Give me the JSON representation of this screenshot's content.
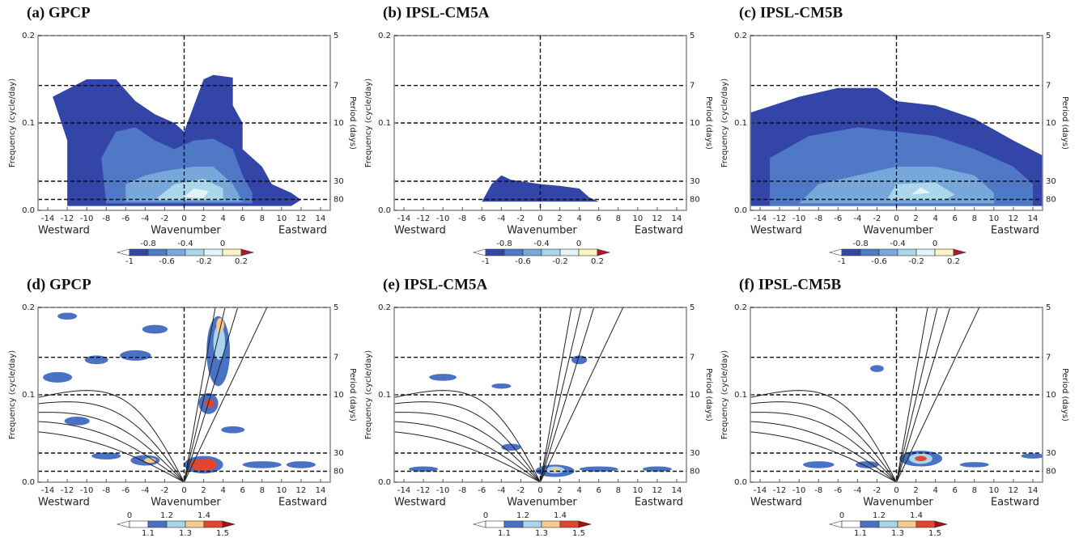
{
  "chart_data": [
    {
      "type": "contour",
      "title": "(a) GPCP",
      "xlabel": "Wavenumber",
      "annotations": [
        "Westward",
        "Eastward"
      ],
      "ylabel": "Frequency (cycle/day)",
      "y2label": "Period (days)",
      "xlim": [
        -15,
        15
      ],
      "xticks": [
        -14,
        -12,
        -10,
        -8,
        -6,
        -4,
        -2,
        0,
        2,
        4,
        6,
        8,
        10,
        12,
        14
      ],
      "ylim": [
        0,
        0.2
      ],
      "yticks": [
        {
          "value": 0,
          "label": "0.0"
        },
        0.1,
        0.2
      ],
      "y2ticks": [
        5,
        7,
        10,
        30,
        80
      ],
      "y2scale": "reciprocal",
      "colorbar": {
        "ticks": [
          -1,
          -0.8,
          -0.6,
          -0.4,
          -0.2,
          0,
          0.2
        ],
        "colors": [
          "#ffffff",
          "#3346a8",
          "#4f79c7",
          "#78a8da",
          "#acd6ec",
          "#e3f4f6",
          "#fdf4c4",
          "#b2182b"
        ]
      }
    },
    {
      "type": "contour",
      "title": "(b) IPSL-CM5A",
      "xlabel": "Wavenumber",
      "annotations": [
        "Westward",
        "Eastward"
      ],
      "ylabel": "Frequency (cycle/day)",
      "y2label": "Period (days)",
      "xlim": [
        -15,
        15
      ],
      "xticks": [
        -14,
        -12,
        -10,
        -8,
        -6,
        -4,
        -2,
        0,
        2,
        4,
        6,
        8,
        10,
        12,
        14
      ],
      "ylim": [
        0,
        0.2
      ],
      "yticks": [
        {
          "value": 0,
          "label": "0.0"
        },
        0.1,
        0.2
      ],
      "y2ticks": [
        5,
        7,
        10,
        30,
        80
      ],
      "y2scale": "reciprocal",
      "colorbar": {
        "ticks": [
          -1,
          -0.8,
          -0.6,
          -0.4,
          -0.2,
          0,
          0.2
        ],
        "colors": [
          "#ffffff",
          "#3346a8",
          "#4f79c7",
          "#78a8da",
          "#acd6ec",
          "#e3f4f6",
          "#fdf4c4",
          "#b2182b"
        ]
      }
    },
    {
      "type": "contour",
      "title": "(c) IPSL-CM5B",
      "xlabel": "Wavenumber",
      "annotations": [
        "Westward",
        "Eastward"
      ],
      "ylabel": "Frequency (cycle/day)",
      "y2label": "Period (days)",
      "xlim": [
        -15,
        15
      ],
      "xticks": [
        -14,
        -12,
        -10,
        -8,
        -6,
        -4,
        -2,
        0,
        2,
        4,
        6,
        8,
        10,
        12,
        14
      ],
      "ylim": [
        0,
        0.2
      ],
      "yticks": [
        {
          "value": 0,
          "label": "0.0"
        },
        0.1,
        0.2
      ],
      "y2ticks": [
        5,
        7,
        10,
        30,
        80
      ],
      "y2scale": "reciprocal",
      "colorbar": {
        "ticks": [
          -1,
          -0.8,
          -0.6,
          -0.4,
          -0.2,
          0,
          0.2
        ],
        "colors": [
          "#ffffff",
          "#3346a8",
          "#4f79c7",
          "#78a8da",
          "#acd6ec",
          "#e3f4f6",
          "#fdf4c4",
          "#b2182b"
        ]
      }
    },
    {
      "type": "contour",
      "title": "(d) GPCP",
      "xlabel": "Wavenumber",
      "annotations": [
        "Westward",
        "Eastward"
      ],
      "ylabel": "Frequency (cycle/day)",
      "y2label": "Period (days)",
      "xlim": [
        -15,
        15
      ],
      "xticks": [
        -14,
        -12,
        -10,
        -8,
        -6,
        -4,
        -2,
        0,
        2,
        4,
        6,
        8,
        10,
        12,
        14
      ],
      "ylim": [
        0,
        0.2
      ],
      "yticks": [
        {
          "value": 0,
          "label": "0.0"
        },
        0.1,
        0.2
      ],
      "y2ticks": [
        5,
        7,
        10,
        30,
        80
      ],
      "y2scale": "reciprocal",
      "colorbar": {
        "ticks": [
          0,
          1.1,
          1.2,
          1.3,
          1.4,
          1.5
        ],
        "colors": [
          "#ffffff",
          "#ffffff",
          "#4a72c4",
          "#a9d5ea",
          "#f7c98a",
          "#e0462f",
          "#a50f15"
        ]
      }
    },
    {
      "type": "contour",
      "title": "(e) IPSL-CM5A",
      "xlabel": "Wavenumber",
      "annotations": [
        "Westward",
        "Eastward"
      ],
      "ylabel": "Frequency (cycle/day)",
      "y2label": "Period (days)",
      "xlim": [
        -15,
        15
      ],
      "xticks": [
        -14,
        -12,
        -10,
        -8,
        -6,
        -4,
        -2,
        0,
        2,
        4,
        6,
        8,
        10,
        12,
        14
      ],
      "ylim": [
        0,
        0.2
      ],
      "yticks": [
        {
          "value": 0,
          "label": "0.0"
        },
        0.1,
        0.2
      ],
      "y2ticks": [
        5,
        7,
        10,
        30,
        80
      ],
      "y2scale": "reciprocal",
      "colorbar": {
        "ticks": [
          0,
          1.1,
          1.2,
          1.3,
          1.4,
          1.5
        ],
        "colors": [
          "#ffffff",
          "#ffffff",
          "#4a72c4",
          "#a9d5ea",
          "#f7c98a",
          "#e0462f",
          "#a50f15"
        ]
      }
    },
    {
      "type": "contour",
      "title": "(f) IPSL-CM5B",
      "xlabel": "Wavenumber",
      "annotations": [
        "Westward",
        "Eastward"
      ],
      "ylabel": "Frequency (cycle/day)",
      "y2label": "Period (days)",
      "xlim": [
        -15,
        15
      ],
      "xticks": [
        -14,
        -12,
        -10,
        -8,
        -6,
        -4,
        -2,
        0,
        2,
        4,
        6,
        8,
        10,
        12,
        14
      ],
      "ylim": [
        0,
        0.2
      ],
      "yticks": [
        {
          "value": 0,
          "label": "0.0"
        },
        0.1,
        0.2
      ],
      "y2ticks": [
        5,
        7,
        10,
        30,
        80
      ],
      "y2scale": "reciprocal",
      "colorbar": {
        "ticks": [
          0,
          1.1,
          1.2,
          1.3,
          1.4,
          1.5
        ],
        "colors": [
          "#ffffff",
          "#ffffff",
          "#4a72c4",
          "#a9d5ea",
          "#f7c98a",
          "#e0462f",
          "#a50f15"
        ]
      }
    }
  ]
}
